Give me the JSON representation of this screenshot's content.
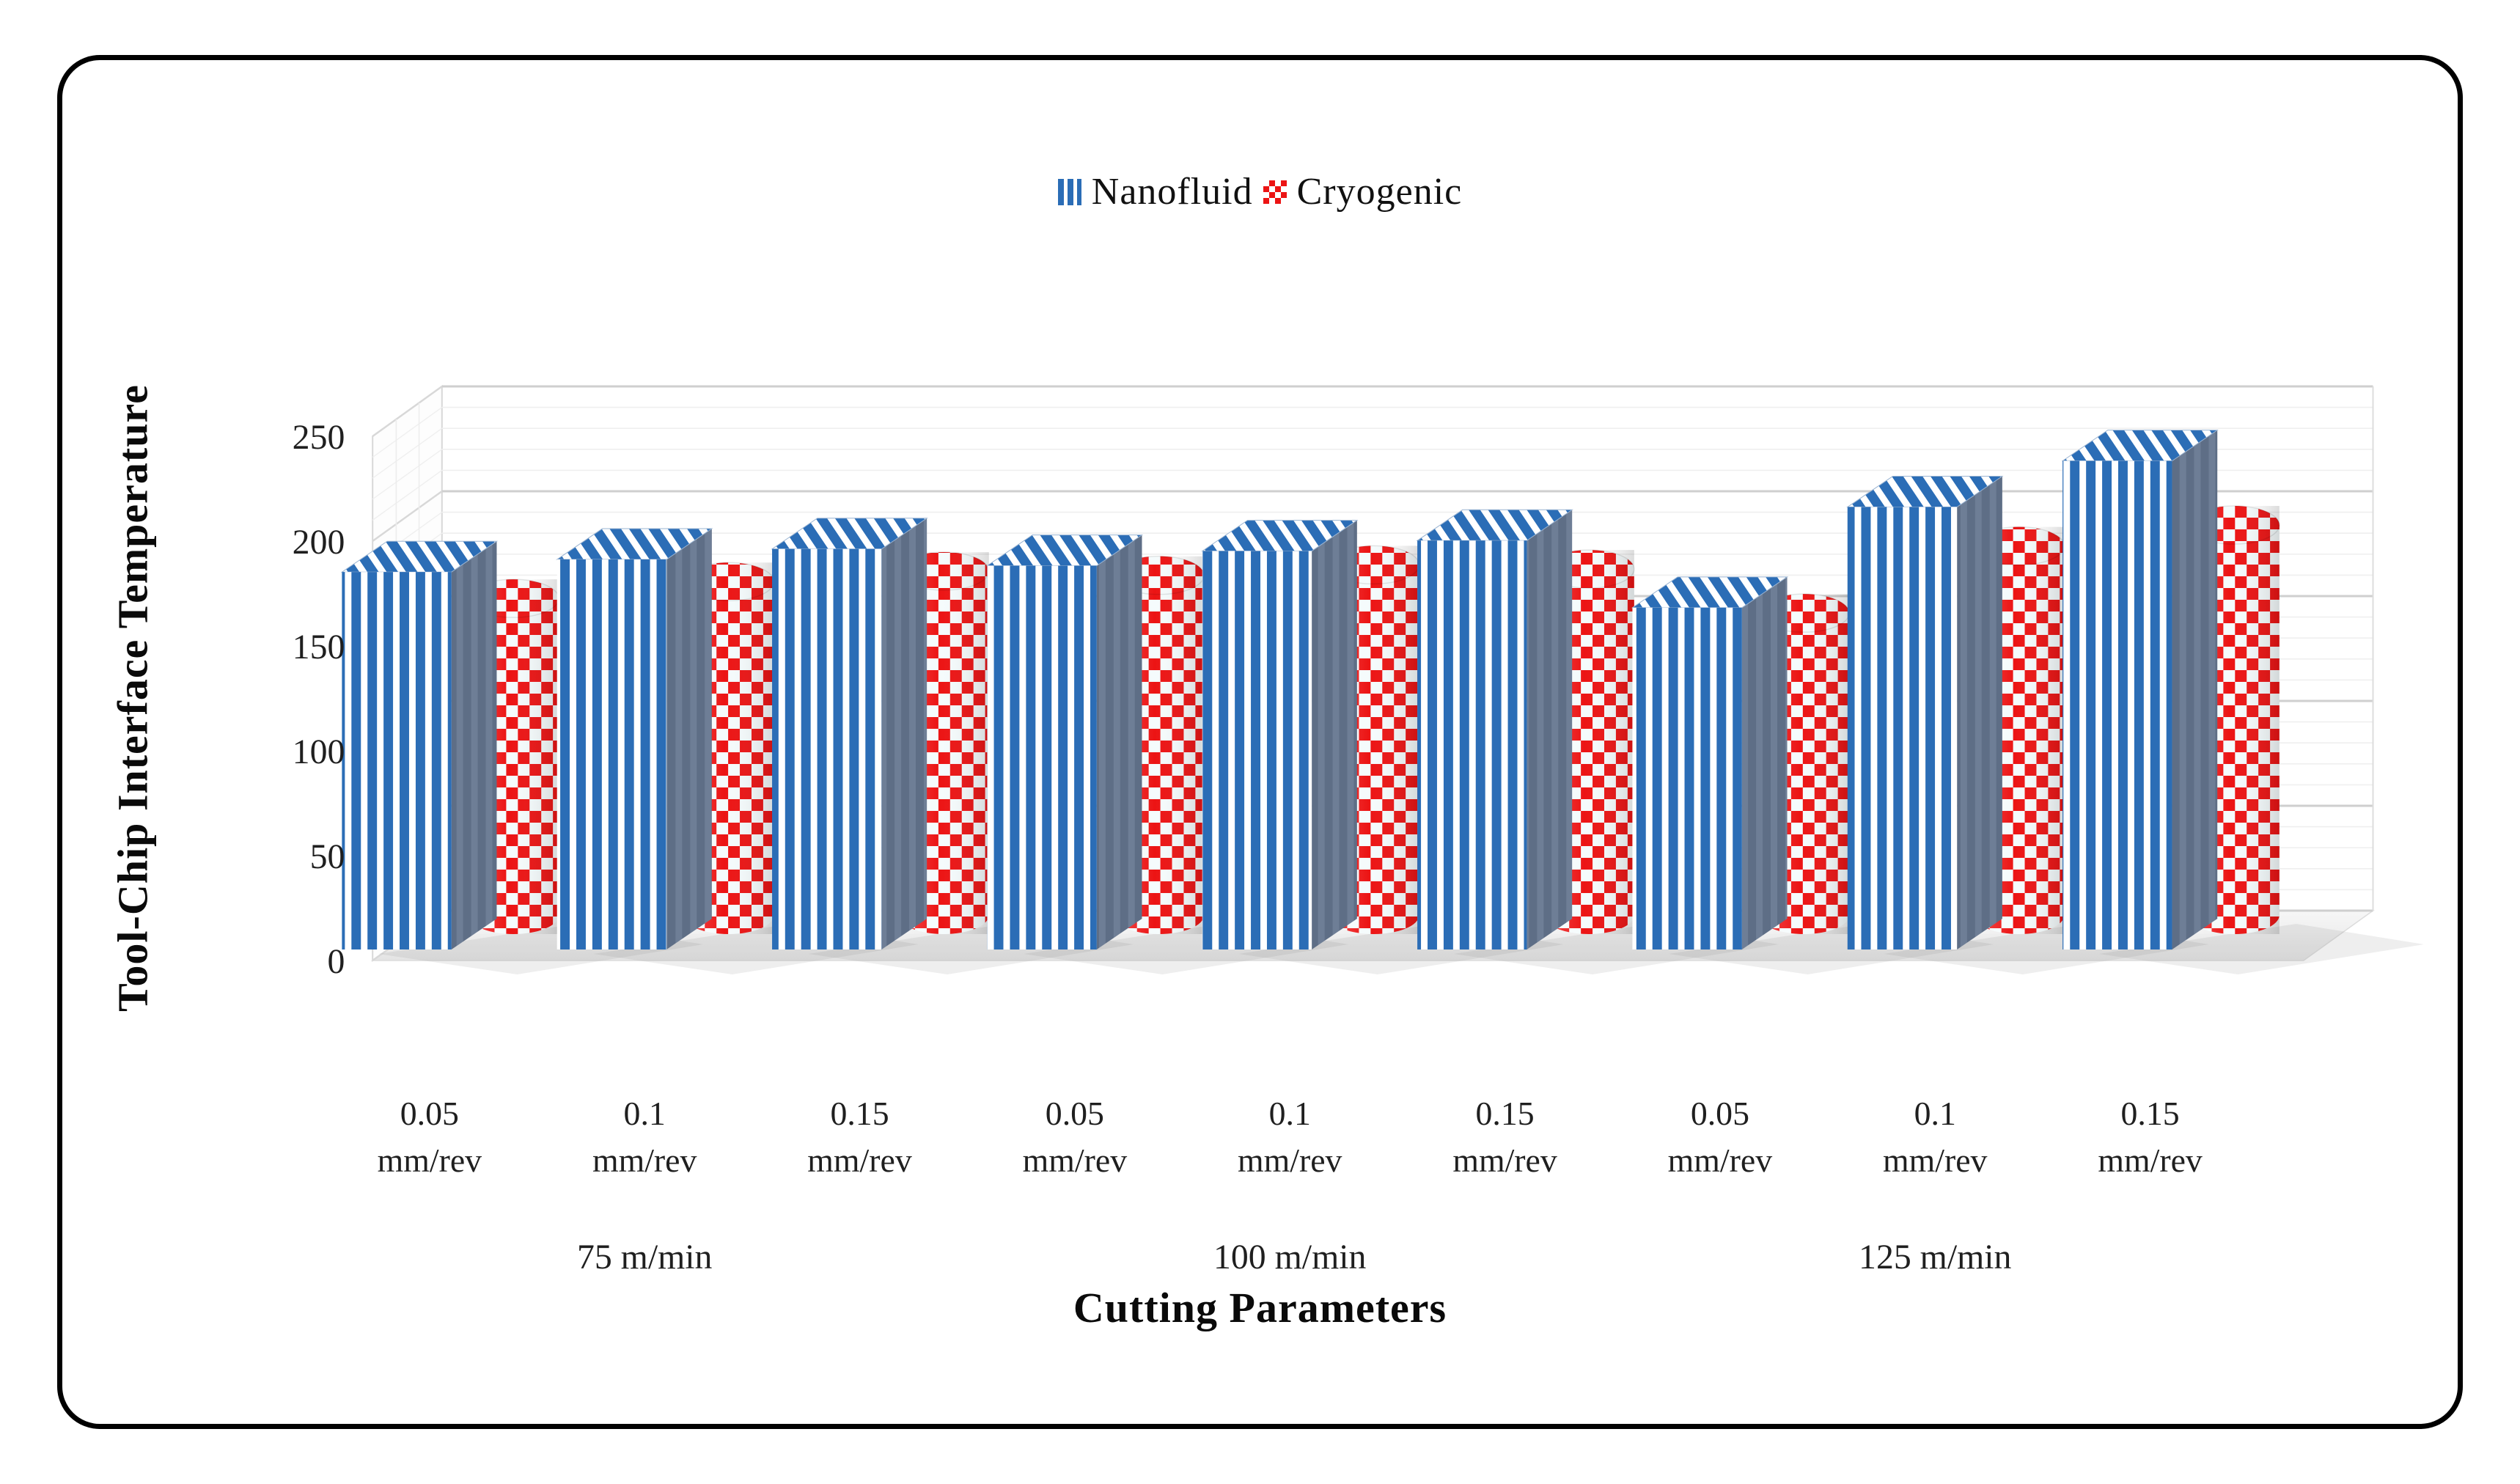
{
  "figure": {
    "border_color": "#000000",
    "background": "#ffffff"
  },
  "legend": {
    "items": [
      {
        "label": "Nanofluid",
        "swatch": "blue-vertical-stripes",
        "color": "#2B6DB6"
      },
      {
        "label": "Cryogenic",
        "swatch": "red-checker",
        "color": "#EC1414"
      }
    ]
  },
  "chart_data": {
    "type": "bar",
    "projection": "3d-oblique",
    "title": "",
    "xlabel": "Cutting Parameters",
    "ylabel": "Tool-Chip Interface Temperature",
    "ylim": [
      0,
      250
    ],
    "yticks": [
      0,
      50,
      100,
      150,
      200,
      250
    ],
    "ytick_interval": 50,
    "minor_gridline_interval": 10,
    "grid": "on",
    "legend_position": "top-center",
    "groups": [
      "75 m/min",
      "100 m/min",
      "125 m/min"
    ],
    "categories": [
      "0.05 mm/rev",
      "0.1 mm/rev",
      "0.15 mm/rev",
      "0.05 mm/rev",
      "0.1 mm/rev",
      "0.15 mm/rev",
      "0.05 mm/rev",
      "0.1 mm/rev",
      "0.15 mm/rev"
    ],
    "category_top_labels": [
      "0.05",
      "0.1",
      "0.15",
      "0.05",
      "0.1",
      "0.15",
      "0.05",
      "0.1",
      "0.15"
    ],
    "category_unit": "mm/rev",
    "series": [
      {
        "name": "Nanofluid",
        "shape": "box",
        "pattern": "vertical-stripes",
        "color": "#2B6DB6",
        "values": [
          180,
          186,
          191,
          183,
          190,
          195,
          163,
          211,
          233
        ]
      },
      {
        "name": "Cryogenic",
        "shape": "cylinder",
        "pattern": "checker",
        "color": "#EC1414",
        "values": [
          151,
          159,
          164,
          162,
          167,
          165,
          144,
          176,
          186
        ]
      }
    ]
  }
}
